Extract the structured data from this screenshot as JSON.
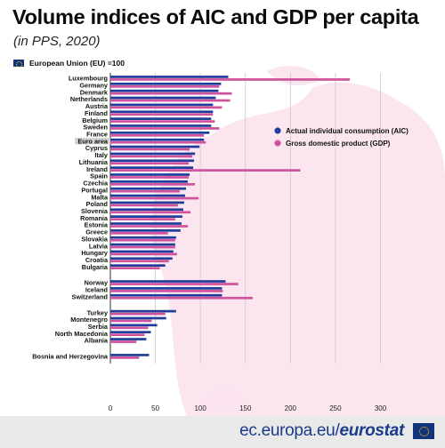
{
  "title": "Volume indices of AIC and GDP per capita",
  "subtitle": "(in PPS, 2020)",
  "eu_note": "European Union (EU) =100",
  "footer": {
    "site": "ec.europa.eu/",
    "brand": "eurostat"
  },
  "colors": {
    "aic": "#1f3d99",
    "gdp": "#d0529c",
    "highlight": "#d4d4d4",
    "background_map": "#fbe3ee"
  },
  "chart_data": {
    "type": "bar",
    "orientation": "horizontal",
    "xlim": [
      0,
      300
    ],
    "xticks": [
      0,
      50,
      100,
      150,
      200,
      250,
      300
    ],
    "grid": true,
    "legend_position": "right",
    "highlighted_category": "Euro area",
    "series": [
      {
        "name": "Actual individual consumption (AIC)",
        "key": "aic"
      },
      {
        "name": "Gross domestic product (GDP)",
        "key": "gdp"
      }
    ],
    "groups": [
      {
        "rows": [
          {
            "label": "Luxembourg",
            "aic": 131,
            "gdp": 266
          },
          {
            "label": "Germany",
            "aic": 123,
            "gdp": 121
          },
          {
            "label": "Denmark",
            "aic": 120,
            "gdp": 135
          },
          {
            "label": "Netherlands",
            "aic": 117,
            "gdp": 133
          },
          {
            "label": "Austria",
            "aic": 114,
            "gdp": 124
          },
          {
            "label": "Finland",
            "aic": 114,
            "gdp": 114
          },
          {
            "label": "Belgium",
            "aic": 112,
            "gdp": 116
          },
          {
            "label": "Sweden",
            "aic": 112,
            "gdp": 121
          },
          {
            "label": "France",
            "aic": 110,
            "gdp": 104
          },
          {
            "label": "Euro area",
            "aic": 104,
            "gdp": 106
          },
          {
            "label": "Cyprus",
            "aic": 99,
            "gdp": 88
          },
          {
            "label": "Italy",
            "aic": 94,
            "gdp": 91
          },
          {
            "label": "Lithuania",
            "aic": 93,
            "gdp": 87
          },
          {
            "label": "Ireland",
            "aic": 92,
            "gdp": 211
          },
          {
            "label": "Spain",
            "aic": 88,
            "gdp": 87
          },
          {
            "label": "Czechia",
            "aic": 86,
            "gdp": 94
          },
          {
            "label": "Portugal",
            "aic": 84,
            "gdp": 77
          },
          {
            "label": "Malta",
            "aic": 83,
            "gdp": 98
          },
          {
            "label": "Poland",
            "aic": 82,
            "gdp": 75
          },
          {
            "label": "Slovenia",
            "aic": 81,
            "gdp": 89
          },
          {
            "label": "Romania",
            "aic": 80,
            "gdp": 72
          },
          {
            "label": "Estonia",
            "aic": 79,
            "gdp": 86
          },
          {
            "label": "Greece",
            "aic": 78,
            "gdp": 64
          },
          {
            "label": "Slovakia",
            "aic": 73,
            "gdp": 72
          },
          {
            "label": "Latvia",
            "aic": 72,
            "gdp": 72
          },
          {
            "label": "Hungary",
            "aic": 70,
            "gdp": 74
          },
          {
            "label": "Croatia",
            "aic": 69,
            "gdp": 65
          },
          {
            "label": "Bulgaria",
            "aic": 61,
            "gdp": 55
          }
        ]
      },
      {
        "rows": [
          {
            "label": "Norway",
            "aic": 128,
            "gdp": 142
          },
          {
            "label": "Iceland",
            "aic": 124,
            "gdp": 125
          },
          {
            "label": "Switzerland",
            "aic": 124,
            "gdp": 158
          }
        ]
      },
      {
        "rows": [
          {
            "label": "Turkey",
            "aic": 73,
            "gdp": 61
          },
          {
            "label": "Montenegro",
            "aic": 62,
            "gdp": 46
          },
          {
            "label": "Serbia",
            "aic": 52,
            "gdp": 42
          },
          {
            "label": "North Macedonia",
            "aic": 45,
            "gdp": 38
          },
          {
            "label": "Albania",
            "aic": 40,
            "gdp": 29
          }
        ]
      },
      {
        "rows": [
          {
            "label": "Bosnia and Herzegovina",
            "aic": 43,
            "gdp": 32
          }
        ]
      }
    ]
  }
}
